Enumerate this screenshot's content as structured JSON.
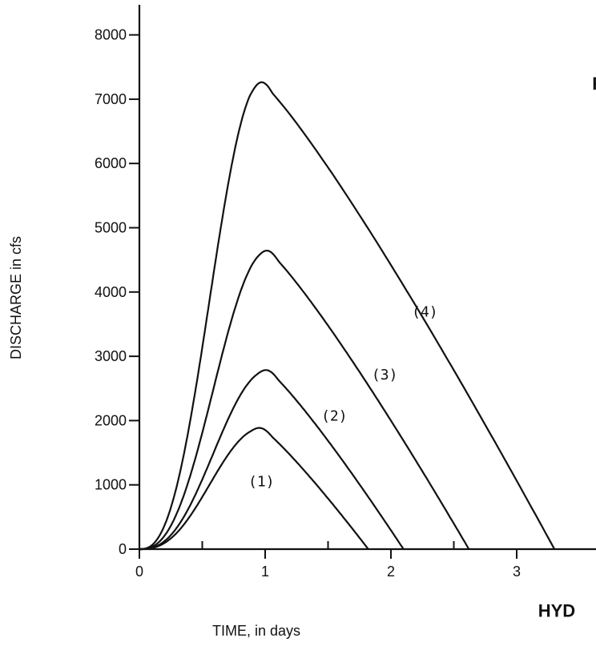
{
  "chart_data": {
    "type": "line",
    "title": "",
    "xlabel": "TIME, in days",
    "ylabel": "DISCHARGE in cfs",
    "xlim": [
      0,
      3.65
    ],
    "ylim": [
      0,
      8000
    ],
    "x_ticks": [
      0,
      1,
      2,
      3
    ],
    "x_minor_ticks": [
      0.5,
      1.5,
      2.5
    ],
    "y_ticks": [
      0,
      1000,
      2000,
      3000,
      4000,
      5000,
      6000,
      7000,
      8000
    ],
    "y_tick_labels": [
      "0",
      "1000",
      "2000",
      "3000",
      "4000",
      "5000",
      "6000",
      "7000",
      "8000"
    ],
    "x_tick_labels": [
      "0",
      "1",
      "2",
      "3"
    ],
    "grid": false,
    "legend": "none",
    "series": [
      {
        "label": "(1)",
        "peak_time": 0.97,
        "peak": 1880,
        "end_time": 1.82,
        "label_at": [
          0.97,
          980
        ]
      },
      {
        "label": "(2)",
        "peak_time": 1.02,
        "peak": 2780,
        "end_time": 2.1,
        "label_at": [
          1.55,
          2000
        ]
      },
      {
        "label": "(3)",
        "peak_time": 1.02,
        "peak": 4640,
        "end_time": 2.62,
        "label_at": [
          1.95,
          2640
        ]
      },
      {
        "label": "(4)",
        "peak_time": 0.97,
        "peak": 7260,
        "end_time": 3.3,
        "label_at": [
          2.27,
          3620
        ]
      }
    ],
    "edge_text": [
      {
        "text": "R",
        "x": 3.6,
        "y": 7150
      },
      {
        "text": "HYD",
        "x": 3.17,
        "y": -1050
      }
    ]
  }
}
